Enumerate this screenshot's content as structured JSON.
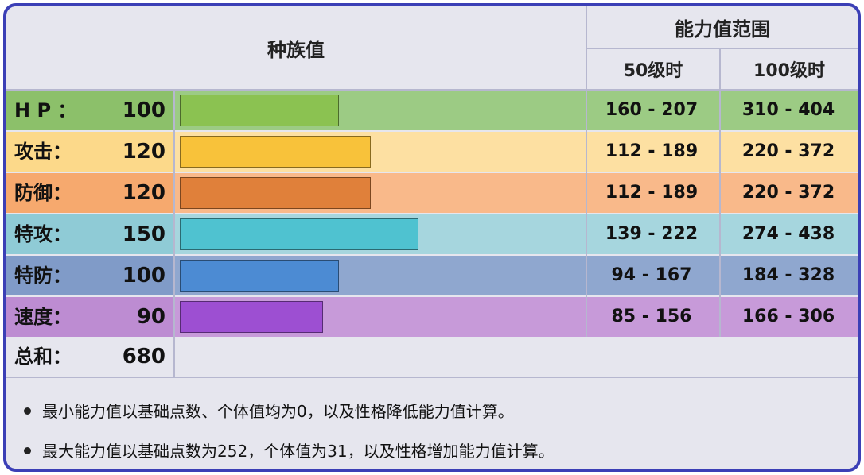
{
  "header": {
    "base_stats_title": "种族值",
    "range_title": "能力值范围",
    "level50_label": "50级时",
    "level100_label": "100级时"
  },
  "stats": [
    {
      "label": "H P ：",
      "value": "100",
      "bar_fraction": 0.3922,
      "range50": "160 - 207",
      "range100": "310 - 404",
      "row_color": "#9ccb84",
      "label_color": "#8cc06a",
      "bar_color": "#8bc251"
    },
    {
      "label": "攻击：",
      "value": "120",
      "bar_fraction": 0.4706,
      "range50": "112 - 189",
      "range100": "220 - 372",
      "row_color": "#fde0a2",
      "label_color": "#fcd98a",
      "bar_color": "#f8c23a"
    },
    {
      "label": "防御：",
      "value": "120",
      "bar_fraction": 0.4706,
      "range50": "112 - 189",
      "range100": "220 - 372",
      "row_color": "#f9b98a",
      "label_color": "#f6a96e",
      "bar_color": "#e0803a"
    },
    {
      "label": "特攻：",
      "value": "150",
      "bar_fraction": 0.5882,
      "range50": "139 - 222",
      "range100": "274 - 438",
      "row_color": "#a6d6de",
      "label_color": "#8fcbd6",
      "bar_color": "#4fc2d0"
    },
    {
      "label": "特防：",
      "value": "100",
      "bar_fraction": 0.3922,
      "range50": "94 - 167",
      "range100": "184 - 328",
      "row_color": "#8fa7cf",
      "label_color": "#809bc8",
      "bar_color": "#4c8bd3"
    },
    {
      "label": "速度：",
      "value": "90",
      "bar_fraction": 0.3529,
      "range50": "85 - 156",
      "range100": "166 - 306",
      "row_color": "#c79ad9",
      "label_color": "#bd8cd2",
      "bar_color": "#9d4fd2"
    }
  ],
  "total": {
    "label": "总和：",
    "value": "680"
  },
  "notes": [
    "最小能力值以基础点数、个体值均为0，以及性格降低能力值计算。",
    "最大能力值以基础点数为252，个体值为31，以及性格增加能力值计算。"
  ]
}
